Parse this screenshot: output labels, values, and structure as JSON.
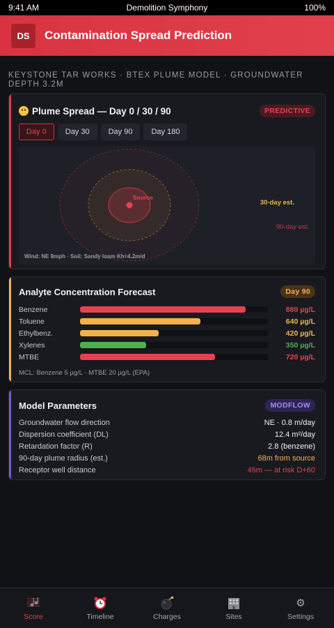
{
  "status": {
    "time": "9:41 AM",
    "app": "Demolition Symphony",
    "battery": "100%"
  },
  "header": {
    "logo": "DS",
    "title": "Contamination Spread Prediction"
  },
  "subhead": "KEYSTONE TAR WORKS · BTEX PLUME MODEL · GROUNDWATER DEPTH 3.2M",
  "plume": {
    "icon": "face-icon",
    "title": "Plume Spread — Day 0 / 30 / 90",
    "badge": "PREDICTIVE",
    "tabs": [
      {
        "label": "Day 0",
        "active": true
      },
      {
        "label": "Day 30",
        "active": false
      },
      {
        "label": "Day 90",
        "active": false
      },
      {
        "label": "Day 180",
        "active": false
      }
    ],
    "source_label": "Source",
    "label_30": "30-day est.",
    "label_90": "90-day est.",
    "footer": "Wind: NE 8mph · Soil: Sandy loam Kh=4.2m/d"
  },
  "analyte": {
    "title": "Analyte Concentration Forecast",
    "badge": "Day 90",
    "rows": [
      {
        "name": "Benzene",
        "value": "880 µg/L",
        "level": 0.88,
        "color": "#e5424f"
      },
      {
        "name": "Toluene",
        "value": "640 µg/L",
        "level": 0.64,
        "color": "#f2b14d"
      },
      {
        "name": "Ethylbenz.",
        "value": "420 µg/L",
        "level": 0.42,
        "color": "#f2b14d"
      },
      {
        "name": "Xylenes",
        "value": "350 µg/L",
        "level": 0.35,
        "color": "#4caf50"
      },
      {
        "name": "MTBE",
        "value": "720 µg/L",
        "level": 0.72,
        "color": "#e5424f"
      }
    ],
    "note": "MCL: Benzene 5 µg/L · MTBE 20 µg/L (EPA)"
  },
  "params": {
    "title": "Model Parameters",
    "badge": "MODFLOW",
    "items": [
      {
        "k": "Groundwater flow direction",
        "v": "NE · 0.8 m/day",
        "color": "#f1f1f3"
      },
      {
        "k": "Dispersion coefficient (DL)",
        "v": "12.4 m²/day",
        "color": "#f1f1f3"
      },
      {
        "k": "Retardation factor (R)",
        "v": "2.8 (benzene)",
        "color": "#f1f1f3"
      },
      {
        "k": "90-day plume radius (est.)",
        "v": "68m from source",
        "color": "#f2b14d"
      },
      {
        "k": "Receptor well distance",
        "v": "45m — at risk D+60",
        "color": "#e5424f"
      }
    ]
  },
  "nav": [
    {
      "label": "Score",
      "icon": "score-icon",
      "active": true
    },
    {
      "label": "Timeline",
      "icon": "alarm-clock-icon",
      "active": false
    },
    {
      "label": "Charges",
      "icon": "bomb-icon",
      "active": false
    },
    {
      "label": "Sites",
      "icon": "building-icon",
      "active": false
    },
    {
      "label": "Settings",
      "icon": "gear-icon",
      "active": false
    }
  ]
}
